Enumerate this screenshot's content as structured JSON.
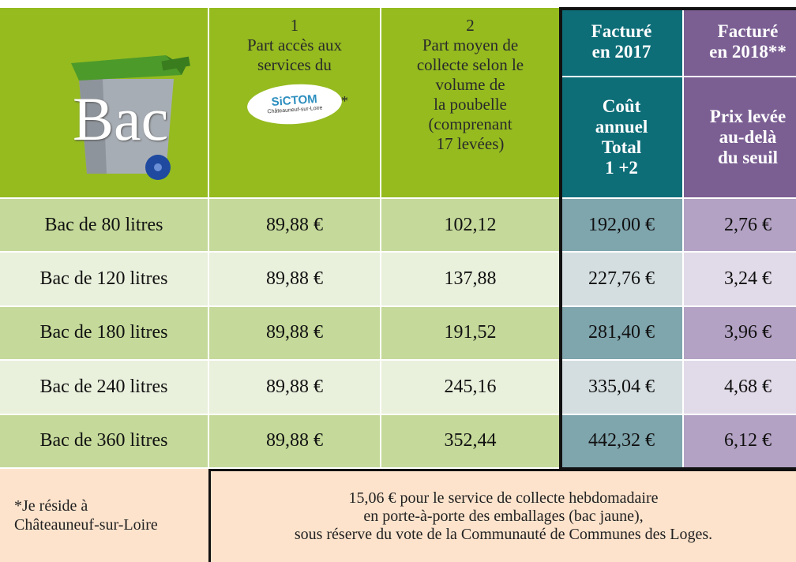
{
  "header": {
    "bin_label": "Bac",
    "col1": {
      "number": "1",
      "lines": [
        "Part accès aux",
        "services du"
      ],
      "note": "*",
      "logo": "SiCTOM",
      "logo_sub": "Châteauneuf-sur-Loire"
    },
    "col2": {
      "number": "2",
      "lines": [
        "Part moyen de",
        "collecte selon le",
        "volume de",
        "la poubelle",
        "(comprenant",
        "17 levées)"
      ]
    },
    "col3": {
      "top": [
        "Facturé",
        "en 2017"
      ],
      "bottom": [
        "Coût",
        "annuel",
        "Total",
        "1 +2"
      ]
    },
    "col4": {
      "top": [
        "Facturé",
        "en 2018**"
      ],
      "bottom": [
        "Prix levée",
        "au-delà",
        "du seuil"
      ]
    }
  },
  "rows": [
    [
      "Bac de 80 litres",
      "89,88 €",
      "102,12",
      "192,00 €",
      "2,76 €"
    ],
    [
      "Bac de 120 litres",
      "89,88 €",
      "137,88",
      "227,76 €",
      "3,24 €"
    ],
    [
      "Bac de 180 litres",
      "89,88 €",
      "191,52",
      "281,40 €",
      "3,96 €"
    ],
    [
      "Bac de 240 litres",
      "89,88 €",
      "245,16",
      "335,04 €",
      "4,68 €"
    ],
    [
      "Bac de 360 litres",
      "89,88 €",
      "352,44",
      "442,32 €",
      "6,12 €"
    ]
  ],
  "footer": {
    "note": [
      "*Je réside à",
      "Châteauneuf-sur-Loire"
    ],
    "text": [
      "15,06 €  pour le service de collecte hebdomadaire",
      "en porte-à-porte des emballages (bac jaune),",
      "sous réserve du vote de la Communauté de Communes des Loges."
    ]
  }
}
